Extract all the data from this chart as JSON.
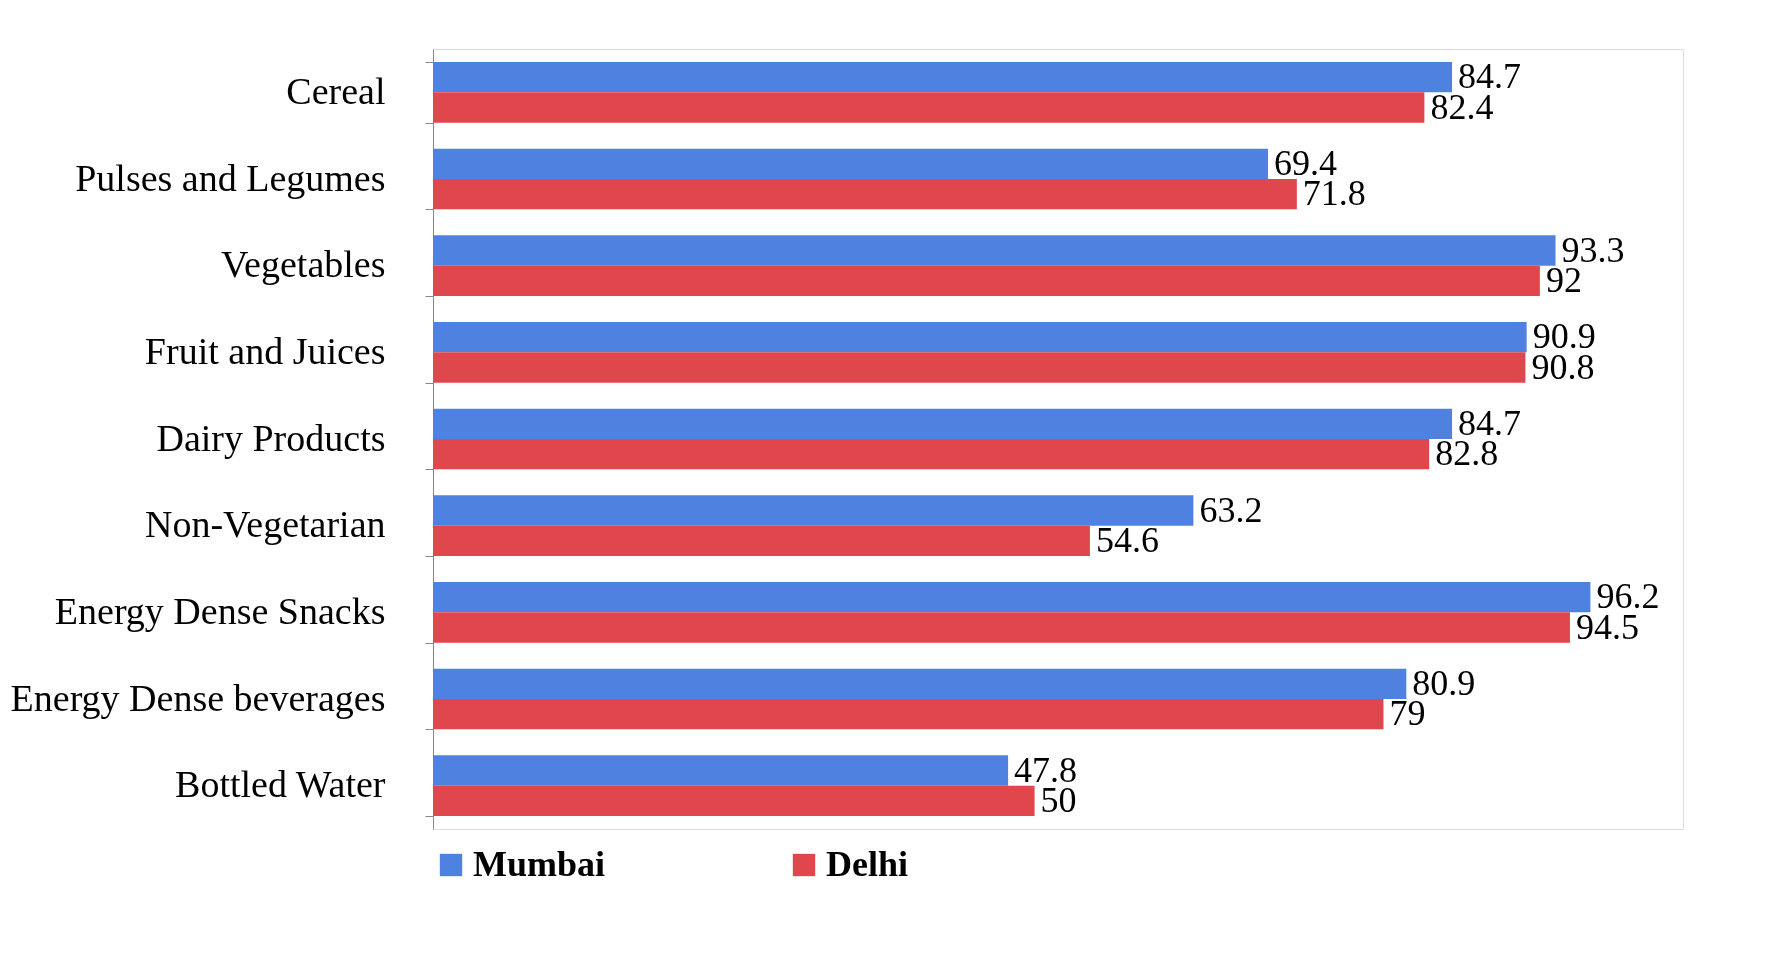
{
  "chart_data": {
    "type": "bar",
    "orientation": "horizontal",
    "categories": [
      "Cereal",
      "Pulses and Legumes",
      "Vegetables",
      "Fruit and Juices",
      "Dairy Products",
      "Non-Vegetarian",
      "Energy Dense Snacks",
      "Energy Dense beverages",
      "Bottled Water"
    ],
    "series": [
      {
        "name": "Mumbai",
        "color": "#4f81e0",
        "values": [
          84.7,
          69.4,
          93.3,
          90.9,
          84.7,
          63.2,
          96.2,
          80.9,
          47.8
        ]
      },
      {
        "name": "Delhi",
        "color": "#e0474c",
        "values": [
          82.4,
          71.8,
          92,
          90.8,
          82.8,
          54.6,
          94.5,
          79,
          50
        ]
      }
    ],
    "data_labels": true,
    "legend": "bottom",
    "tick_labels": "y",
    "grid": false
  }
}
